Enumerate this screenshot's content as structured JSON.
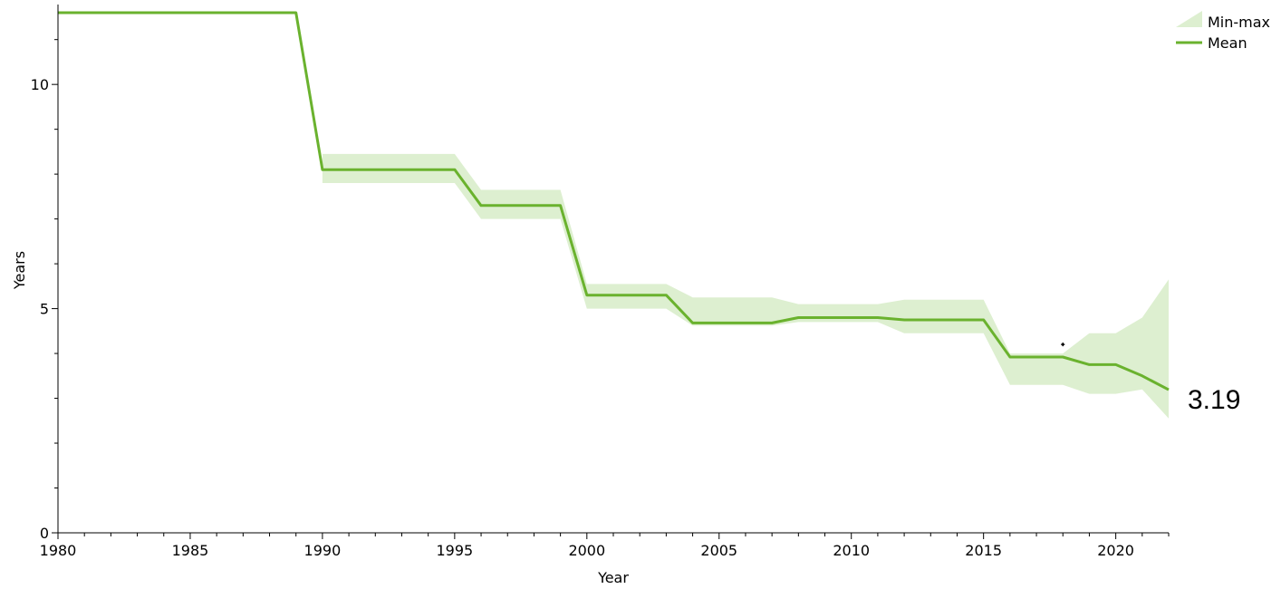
{
  "chart_data": {
    "type": "line",
    "title": "",
    "xlabel": "Year",
    "ylabel": "Years",
    "xlim": [
      1980,
      2022
    ],
    "ylim": [
      0,
      11.6
    ],
    "x_ticks": [
      1980,
      1985,
      1990,
      1995,
      2000,
      2005,
      2010,
      2015,
      2020
    ],
    "y_ticks": [
      0,
      5,
      10
    ],
    "grid": false,
    "legend_position": "top-right",
    "legend": [
      "Min-max",
      "Mean"
    ],
    "colors": {
      "line": "#6ab22e",
      "band": "#ddefd0"
    },
    "series": [
      {
        "name": "Mean",
        "x": [
          1980,
          1989,
          1990,
          1995,
          1996,
          1999,
          2000,
          2003,
          2004,
          2007,
          2008,
          2011,
          2012,
          2015,
          2016,
          2018,
          2019,
          2020,
          2021,
          2022
        ],
        "y": [
          11.6,
          11.6,
          8.1,
          8.1,
          7.3,
          7.3,
          5.3,
          5.3,
          4.68,
          4.68,
          4.8,
          4.8,
          4.75,
          4.75,
          3.92,
          3.92,
          3.75,
          3.75,
          3.5,
          3.19
        ]
      },
      {
        "name": "Min-max",
        "x": [
          1990,
          1995,
          1996,
          1999,
          2000,
          2003,
          2004,
          2007,
          2008,
          2011,
          2012,
          2015,
          2016,
          2018,
          2019,
          2020,
          2021,
          2022
        ],
        "min": [
          7.8,
          7.8,
          7.0,
          7.0,
          5.0,
          5.0,
          4.62,
          4.62,
          4.7,
          4.7,
          4.45,
          4.45,
          3.3,
          3.3,
          3.1,
          3.1,
          3.2,
          2.55
        ],
        "max": [
          8.45,
          8.45,
          7.65,
          7.65,
          5.55,
          5.55,
          5.25,
          5.25,
          5.1,
          5.1,
          5.2,
          5.2,
          4.0,
          4.0,
          4.45,
          4.45,
          4.8,
          5.65
        ]
      }
    ],
    "end_label": "3.19",
    "marker": {
      "x": 2018,
      "y": 4.2
    }
  }
}
